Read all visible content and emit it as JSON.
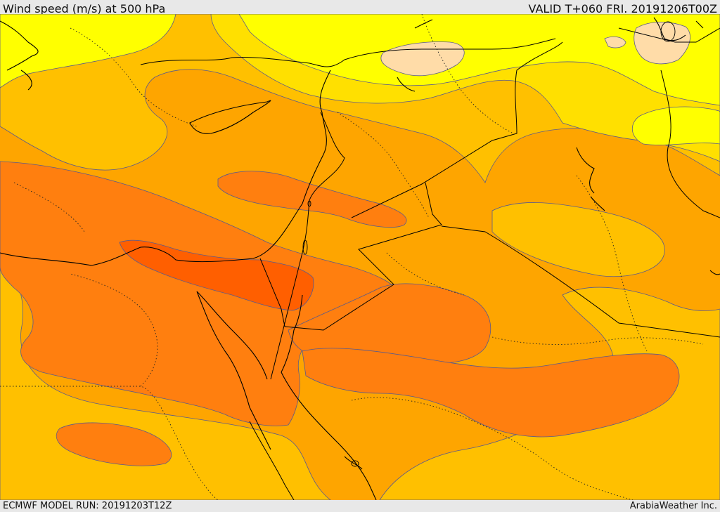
{
  "header": {
    "title": "Wind speed (m/s) at 500 hPa",
    "valid": "VALID T+060 FRI. 20191206T00Z"
  },
  "footer": {
    "model_run": "ECMWF MODEL RUN: 20191203T12Z",
    "brand": "ArabiaWeather Inc."
  },
  "map": {
    "field": "wind speed",
    "level": "500 hPa",
    "colors": {
      "band_lightest": "#ffdca8",
      "band_yellow": "#ffff00",
      "band_gold": "#ffe000",
      "band_amber": "#ffc000",
      "band_orange": "#fea500",
      "band_dark_orange": "#ff7f0f",
      "band_red_orange": "#ff5f00",
      "coastline": "#000000",
      "contour": "#5a5a8c"
    }
  }
}
